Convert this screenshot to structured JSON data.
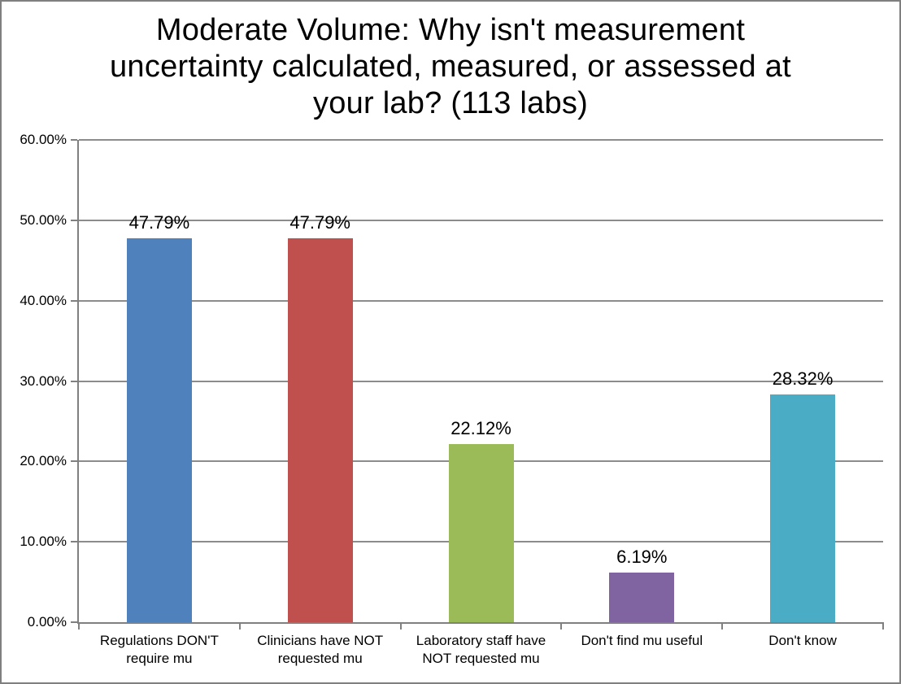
{
  "chart_data": {
    "type": "bar",
    "title": "Moderate Volume: Why isn't measurement uncertainty calculated, measured, or assessed at your lab? (113 labs)",
    "title_lines": [
      "Moderate Volume: Why isn't measurement",
      "uncertainty calculated, measured, or assessed at",
      "your lab? (113 labs)"
    ],
    "categories": [
      "Regulations DON'T require mu",
      "Clinicians have NOT requested mu",
      "Laboratory staff have NOT requested mu",
      "Don't find mu useful",
      "Don't know"
    ],
    "values": [
      47.79,
      47.79,
      22.12,
      6.19,
      28.32
    ],
    "data_labels": [
      "47.79%",
      "47.79%",
      "22.12%",
      "6.19%",
      "28.32%"
    ],
    "bar_colors": [
      "#4F81BD",
      "#C0504D",
      "#9BBB59",
      "#8064A2",
      "#4BACC6"
    ],
    "xlabel": "",
    "ylabel": "",
    "ylim": [
      0,
      60
    ],
    "ytick_step": 10,
    "ytick_labels": [
      "0.00%",
      "10.00%",
      "20.00%",
      "30.00%",
      "40.00%",
      "50.00%",
      "60.00%"
    ],
    "grid": "horizontal",
    "legend": "none"
  },
  "colors": {
    "background": "#FFFFFF",
    "frame_border": "#7F7F7F",
    "axis": "#808080",
    "gridline": "#8C8C8C",
    "text": "#000000"
  }
}
